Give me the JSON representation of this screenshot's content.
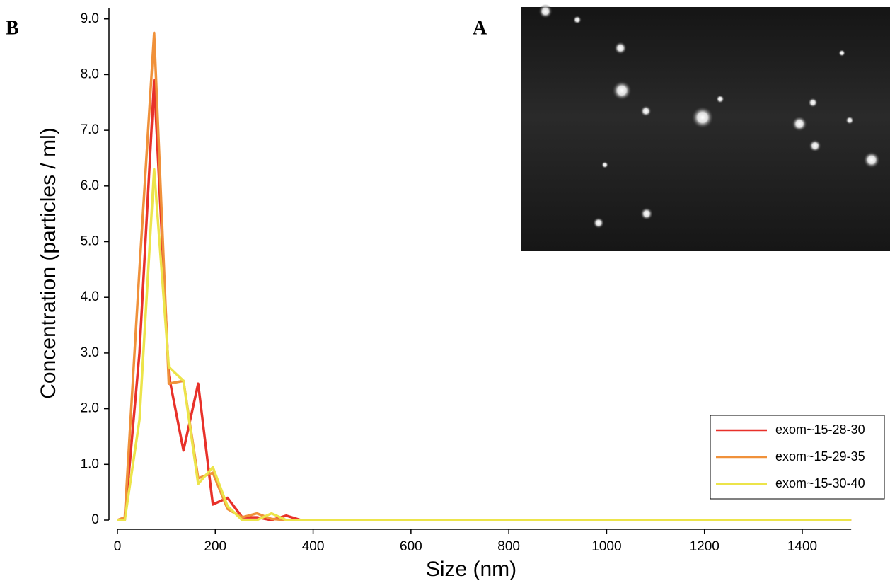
{
  "image_panel": {
    "label": "A"
  },
  "chart_data": {
    "type": "line",
    "panel_label": "B",
    "x_label": "Size (nm)",
    "y_label": "Concentration (particles / ml)",
    "x": [
      0,
      15,
      45,
      75,
      105,
      135,
      165,
      195,
      225,
      255,
      285,
      315,
      345,
      375,
      1500
    ],
    "series": [
      {
        "name": "exom~15-28-30",
        "color": "#e8312a",
        "values": [
          0,
          0,
          3.0,
          7.9,
          2.6,
          1.25,
          2.45,
          0.28,
          0.4,
          0.05,
          0.05,
          0,
          0.08,
          0,
          0
        ]
      },
      {
        "name": "exom~15-29-35",
        "color": "#f0913a",
        "values": [
          0,
          0.05,
          4.5,
          8.75,
          2.45,
          2.5,
          0.75,
          0.85,
          0.2,
          0.05,
          0.12,
          0.02,
          0,
          0,
          0
        ]
      },
      {
        "name": "exom~15-30-40",
        "color": "#ece44a",
        "values": [
          0,
          0,
          1.8,
          6.3,
          2.75,
          2.5,
          0.65,
          0.95,
          0.25,
          0,
          0,
          0.12,
          0,
          0,
          0
        ]
      }
    ],
    "xlim": [
      0,
      1500
    ],
    "xticks": [
      0,
      200,
      400,
      600,
      800,
      1000,
      1200,
      1400
    ],
    "ylim": [
      0,
      9.2
    ],
    "yticks": [
      0,
      {
        "value": 1,
        "label": "1.0"
      },
      {
        "value": 2,
        "label": "2.0"
      },
      {
        "value": 3,
        "label": "3.0"
      },
      {
        "value": 4,
        "label": "4.0"
      },
      {
        "value": 5,
        "label": "5.0"
      },
      {
        "value": 6,
        "label": "6.0"
      },
      {
        "value": 7,
        "label": "7.0"
      },
      {
        "value": 8,
        "label": "8.0"
      },
      {
        "value": 9,
        "label": "9.0"
      }
    ],
    "grid": false,
    "legend": "lower right"
  }
}
